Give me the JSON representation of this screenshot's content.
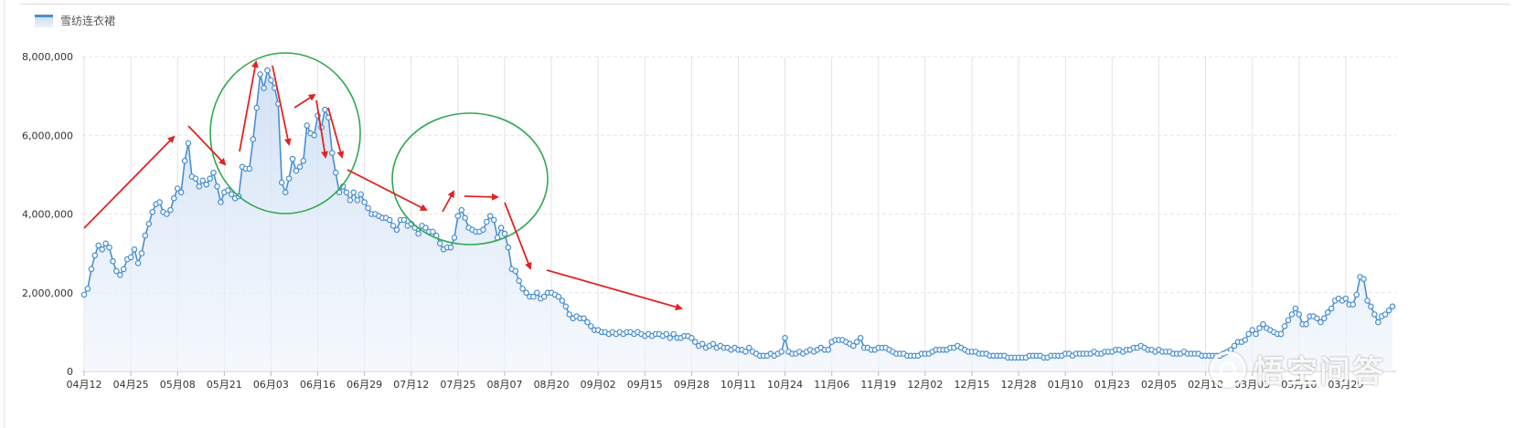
{
  "legend": {
    "label": "雪纺连衣裙",
    "color": "#4a8fd0"
  },
  "watermark": {
    "text": "悟空问答"
  },
  "chart_data": {
    "type": "area",
    "series": [
      {
        "name": "雪纺连衣裙",
        "values": [
          1950000,
          2100000,
          2600000,
          2950000,
          3200000,
          3100000,
          3250000,
          3150000,
          2800000,
          2550000,
          2450000,
          2600000,
          2850000,
          2900000,
          3100000,
          2750000,
          3000000,
          3450000,
          3750000,
          4050000,
          4250000,
          4300000,
          4050000,
          4000000,
          4100000,
          4400000,
          4650000,
          4550000,
          5350000,
          5800000,
          4950000,
          4900000,
          4700000,
          4850000,
          4750000,
          4900000,
          5050000,
          4700000,
          4300000,
          4550000,
          4600000,
          4500000,
          4400000,
          4450000,
          5200000,
          5150000,
          5150000,
          5900000,
          6700000,
          7550000,
          7200000,
          7650000,
          7400000,
          7200000,
          6800000,
          4800000,
          4550000,
          4900000,
          5400000,
          5100000,
          5200000,
          5350000,
          6250000,
          6050000,
          6000000,
          6500000,
          6200000,
          6650000,
          6450000,
          5550000,
          5050000,
          4550000,
          4700000,
          4550000,
          4350000,
          4550000,
          4350000,
          4500000,
          4300000,
          4150000,
          4000000,
          4000000,
          3950000,
          3900000,
          3900000,
          3850000,
          3700000,
          3600000,
          3850000,
          3850000,
          3700000,
          3750000,
          3650000,
          3500000,
          3700000,
          3650000,
          3550000,
          3550000,
          3450000,
          3250000,
          3100000,
          3150000,
          3150000,
          3400000,
          3950000,
          4100000,
          3900000,
          3650000,
          3600000,
          3550000,
          3550000,
          3600000,
          3800000,
          3950000,
          3850000,
          3400000,
          3650000,
          3500000,
          3150000,
          2600000,
          2550000,
          2300000,
          2100000,
          2000000,
          1900000,
          1900000,
          2000000,
          1850000,
          1900000,
          2000000,
          2000000,
          1950000,
          1900000,
          1800000,
          1650000,
          1450000,
          1350000,
          1400000,
          1350000,
          1350000,
          1250000,
          1150000,
          1050000,
          1050000,
          1000000,
          1000000,
          950000,
          1000000,
          950000,
          1000000,
          950000,
          1000000,
          1000000,
          950000,
          1000000,
          950000,
          900000,
          950000,
          900000,
          950000,
          950000,
          900000,
          950000,
          850000,
          950000,
          850000,
          850000,
          900000,
          900000,
          850000,
          750000,
          650000,
          700000,
          600000,
          650000,
          700000,
          600000,
          650000,
          600000,
          600000,
          550000,
          600000,
          550000,
          550000,
          500000,
          600000,
          500000,
          450000,
          400000,
          400000,
          400000,
          450000,
          400000,
          450000,
          500000,
          850000,
          500000,
          450000,
          450000,
          500000,
          450000,
          500000,
          550000,
          500000,
          550000,
          600000,
          550000,
          550000,
          750000,
          800000,
          800000,
          800000,
          750000,
          700000,
          650000,
          750000,
          850000,
          600000,
          600000,
          550000,
          550000,
          600000,
          600000,
          600000,
          550000,
          500000,
          450000,
          450000,
          450000,
          400000,
          400000,
          400000,
          400000,
          450000,
          450000,
          450000,
          500000,
          550000,
          550000,
          550000,
          550000,
          600000,
          600000,
          650000,
          600000,
          550000,
          500000,
          500000,
          500000,
          450000,
          450000,
          450000,
          400000,
          400000,
          400000,
          400000,
          400000,
          350000,
          350000,
          350000,
          350000,
          350000,
          350000,
          400000,
          400000,
          400000,
          400000,
          350000,
          350000,
          400000,
          400000,
          400000,
          400000,
          450000,
          450000,
          400000,
          450000,
          450000,
          450000,
          450000,
          450000,
          500000,
          450000,
          450000,
          500000,
          500000,
          500000,
          550000,
          550000,
          500000,
          550000,
          550000,
          600000,
          600000,
          650000,
          600000,
          550000,
          550000,
          500000,
          550000,
          500000,
          500000,
          500000,
          450000,
          450000,
          450000,
          500000,
          450000,
          450000,
          450000,
          450000,
          400000,
          400000,
          400000,
          400000,
          400000,
          400000,
          450000,
          500000,
          550000,
          650000,
          750000,
          750000,
          800000,
          950000,
          1050000,
          950000,
          1100000,
          1200000,
          1100000,
          1050000,
          1000000,
          950000,
          950000,
          1150000,
          1300000,
          1450000,
          1600000,
          1450000,
          1200000,
          1200000,
          1400000,
          1400000,
          1350000,
          1250000,
          1350000,
          1500000,
          1600000,
          1800000,
          1850000,
          1800000,
          1850000,
          1700000,
          1700000,
          1950000,
          2400000,
          2350000,
          1800000,
          1650000,
          1450000,
          1250000,
          1400000,
          1450000,
          1550000,
          1650000
        ]
      }
    ],
    "x_ticks": [
      "04月12",
      "04月25",
      "05月08",
      "05月21",
      "06月03",
      "06月16",
      "06月29",
      "07月12",
      "07月25",
      "08月07",
      "08月20",
      "09月02",
      "09月15",
      "09月28",
      "10月11",
      "10月24",
      "11月06",
      "11月19",
      "12月02",
      "12月15",
      "12月28",
      "01月10",
      "01月23",
      "02月05",
      "02月18",
      "03月03",
      "03月16",
      "03月29"
    ],
    "y_ticks": [
      "0",
      "2,000,000",
      "4,000,000",
      "6,000,000",
      "8,000,000"
    ],
    "ylim": [
      0,
      8000000
    ],
    "grid": true,
    "legend_position": "top-left",
    "annotations": {
      "arrow_color": "#e32323",
      "circle_color": "#2fa84f",
      "arrow_count": 14,
      "circle_count": 2
    }
  }
}
